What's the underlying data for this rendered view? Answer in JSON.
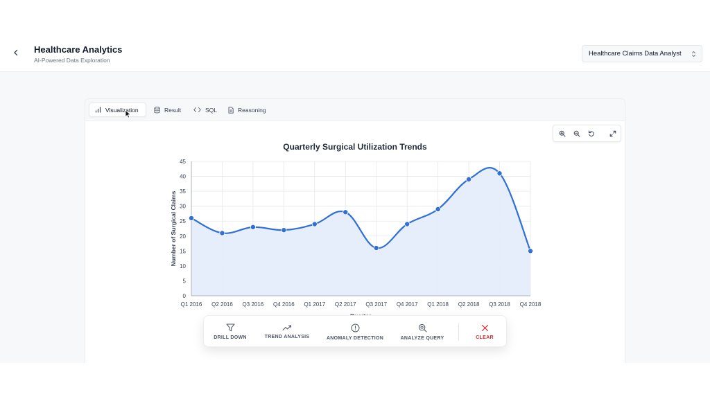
{
  "header": {
    "title": "Healthcare Analytics",
    "subtitle": "AI-Powered Data Exploration",
    "role_select": "Healthcare Claims Data Analyst"
  },
  "tabs": [
    {
      "label": "Visualization",
      "icon": "bar-chart-icon",
      "active": true
    },
    {
      "label": "Result",
      "icon": "database-icon",
      "active": false
    },
    {
      "label": "SQL",
      "icon": "code-icon",
      "active": false
    },
    {
      "label": "Reasoning",
      "icon": "document-icon",
      "active": false
    }
  ],
  "toolbox": [
    "zoom-in-icon",
    "zoom-out-icon",
    "reset-icon",
    "expand-icon"
  ],
  "chart_data": {
    "type": "line",
    "title": "Quarterly Surgical Utilization Trends",
    "xlabel": "Quarter",
    "ylabel": "Number of Surgical Claims",
    "categories": [
      "Q1 2016",
      "Q2 2016",
      "Q3 2016",
      "Q4 2016",
      "Q1 2017",
      "Q2 2017",
      "Q3 2017",
      "Q4 2017",
      "Q1 2018",
      "Q2 2018",
      "Q3 2018",
      "Q4 2018"
    ],
    "values": [
      26,
      21,
      23,
      22,
      24,
      28,
      16,
      24,
      29,
      39,
      41,
      15
    ],
    "ylim": [
      0,
      45
    ],
    "yticks": [
      "0",
      "5",
      "10",
      "15",
      "20",
      "25",
      "30",
      "35",
      "40",
      "45"
    ],
    "grid": true,
    "smooth": true,
    "area_fill": true,
    "line_color": "#2f6fd6",
    "fill_color": "#e4ecfb"
  },
  "actions": [
    {
      "label": "DRILL DOWN",
      "icon": "filter-icon"
    },
    {
      "label": "TREND ANALYSIS",
      "icon": "trending-up-icon"
    },
    {
      "label": "ANOMALY DETECTION",
      "icon": "alert-circle-icon"
    },
    {
      "label": "ANALYZE QUERY",
      "icon": "search-zoom-icon"
    },
    {
      "label": "CLEAR",
      "icon": "close-icon"
    }
  ]
}
